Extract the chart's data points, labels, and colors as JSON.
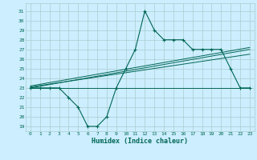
{
  "title": "",
  "xlabel": "Humidex (Indice chaleur)",
  "bg_color": "#cceeff",
  "grid_color": "#aacccc",
  "line_color": "#006655",
  "xlim": [
    -0.5,
    23.5
  ],
  "ylim": [
    18.5,
    31.8
  ],
  "xticks": [
    0,
    1,
    2,
    3,
    4,
    5,
    6,
    7,
    8,
    9,
    10,
    11,
    12,
    13,
    14,
    15,
    16,
    17,
    18,
    19,
    20,
    21,
    22,
    23
  ],
  "yticks": [
    19,
    20,
    21,
    22,
    23,
    24,
    25,
    26,
    27,
    28,
    29,
    30,
    31
  ],
  "main_x": [
    0,
    1,
    2,
    3,
    4,
    5,
    6,
    7,
    8,
    9,
    10,
    11,
    12,
    13,
    14,
    15,
    16,
    17,
    18,
    19,
    20,
    21,
    22,
    23
  ],
  "main_y": [
    23,
    23,
    23,
    23,
    22,
    21,
    19,
    19,
    20,
    23,
    25,
    27,
    31,
    29,
    28,
    28,
    28,
    27,
    27,
    27,
    27,
    25,
    23,
    23
  ],
  "flat_y": 23.0,
  "trend1_y": [
    23.0,
    27.0
  ],
  "trend2_y": [
    23.1,
    26.5
  ],
  "trend3_y": [
    23.2,
    27.2
  ]
}
